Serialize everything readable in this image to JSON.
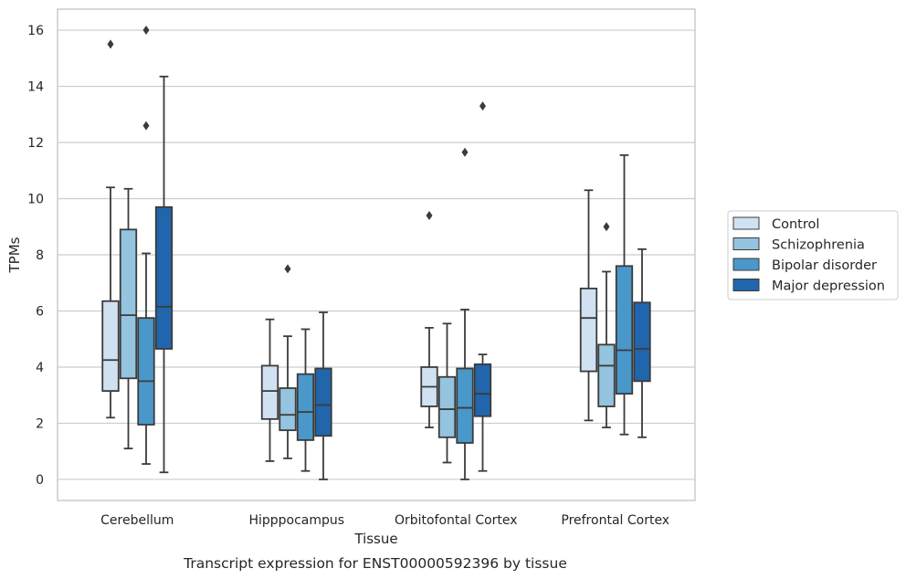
{
  "chart_data": {
    "type": "box",
    "caption": "Transcript expression for ENST00000592396 by tissue",
    "xlabel": "Tissue",
    "ylabel": "TPMs",
    "ylim": [
      -0.75,
      16.75
    ],
    "yticks": [
      0,
      2,
      4,
      6,
      8,
      10,
      12,
      14,
      16
    ],
    "grid": true,
    "legend_position": "right",
    "categories": [
      "Cerebellum",
      "Hipppocampus",
      "Orbitofontal Cortex",
      "Prefrontal Cortex"
    ],
    "series": [
      {
        "name": "Control",
        "color": "#d0e1f2",
        "boxes": [
          {
            "min": 2.2,
            "q1": 3.15,
            "median": 4.25,
            "q3": 6.35,
            "max": 10.4,
            "outliers": [
              15.5
            ]
          },
          {
            "min": 0.65,
            "q1": 2.15,
            "median": 3.15,
            "q3": 4.05,
            "max": 5.7,
            "outliers": []
          },
          {
            "min": 1.85,
            "q1": 2.6,
            "median": 3.3,
            "q3": 4.0,
            "max": 5.4,
            "outliers": [
              9.4
            ]
          },
          {
            "min": 2.1,
            "q1": 3.85,
            "median": 5.75,
            "q3": 6.8,
            "max": 10.3,
            "outliers": []
          }
        ]
      },
      {
        "name": "Schizophrenia",
        "color": "#94c4df",
        "boxes": [
          {
            "min": 1.1,
            "q1": 3.6,
            "median": 5.85,
            "q3": 8.9,
            "max": 10.35,
            "outliers": []
          },
          {
            "min": 0.75,
            "q1": 1.75,
            "median": 2.3,
            "q3": 3.25,
            "max": 5.1,
            "outliers": [
              7.5
            ]
          },
          {
            "min": 0.6,
            "q1": 1.5,
            "median": 2.5,
            "q3": 3.65,
            "max": 5.55,
            "outliers": []
          },
          {
            "min": 1.85,
            "q1": 2.6,
            "median": 4.05,
            "q3": 4.8,
            "max": 7.4,
            "outliers": [
              9.0
            ]
          }
        ]
      },
      {
        "name": "Bipolar disorder",
        "color": "#4a98c9",
        "boxes": [
          {
            "min": 0.55,
            "q1": 1.95,
            "median": 3.5,
            "q3": 5.75,
            "max": 8.05,
            "outliers": [
              12.6,
              16.0
            ]
          },
          {
            "min": 0.3,
            "q1": 1.4,
            "median": 2.4,
            "q3": 3.75,
            "max": 5.35,
            "outliers": []
          },
          {
            "min": 0.0,
            "q1": 1.3,
            "median": 2.55,
            "q3": 3.95,
            "max": 6.05,
            "outliers": [
              11.65
            ]
          },
          {
            "min": 1.6,
            "q1": 3.05,
            "median": 4.6,
            "q3": 7.6,
            "max": 11.55,
            "outliers": []
          }
        ]
      },
      {
        "name": "Major depression",
        "color": "#2166ac",
        "boxes": [
          {
            "min": 0.25,
            "q1": 4.65,
            "median": 6.15,
            "q3": 9.7,
            "max": 14.35,
            "outliers": []
          },
          {
            "min": 0.0,
            "q1": 1.55,
            "median": 2.65,
            "q3": 3.95,
            "max": 5.95,
            "outliers": []
          },
          {
            "min": 0.3,
            "q1": 2.25,
            "median": 3.05,
            "q3": 4.1,
            "max": 4.45,
            "outliers": [
              13.3
            ]
          },
          {
            "min": 1.5,
            "q1": 3.5,
            "median": 4.65,
            "q3": 6.3,
            "max": 8.2,
            "outliers": []
          }
        ]
      }
    ]
  }
}
